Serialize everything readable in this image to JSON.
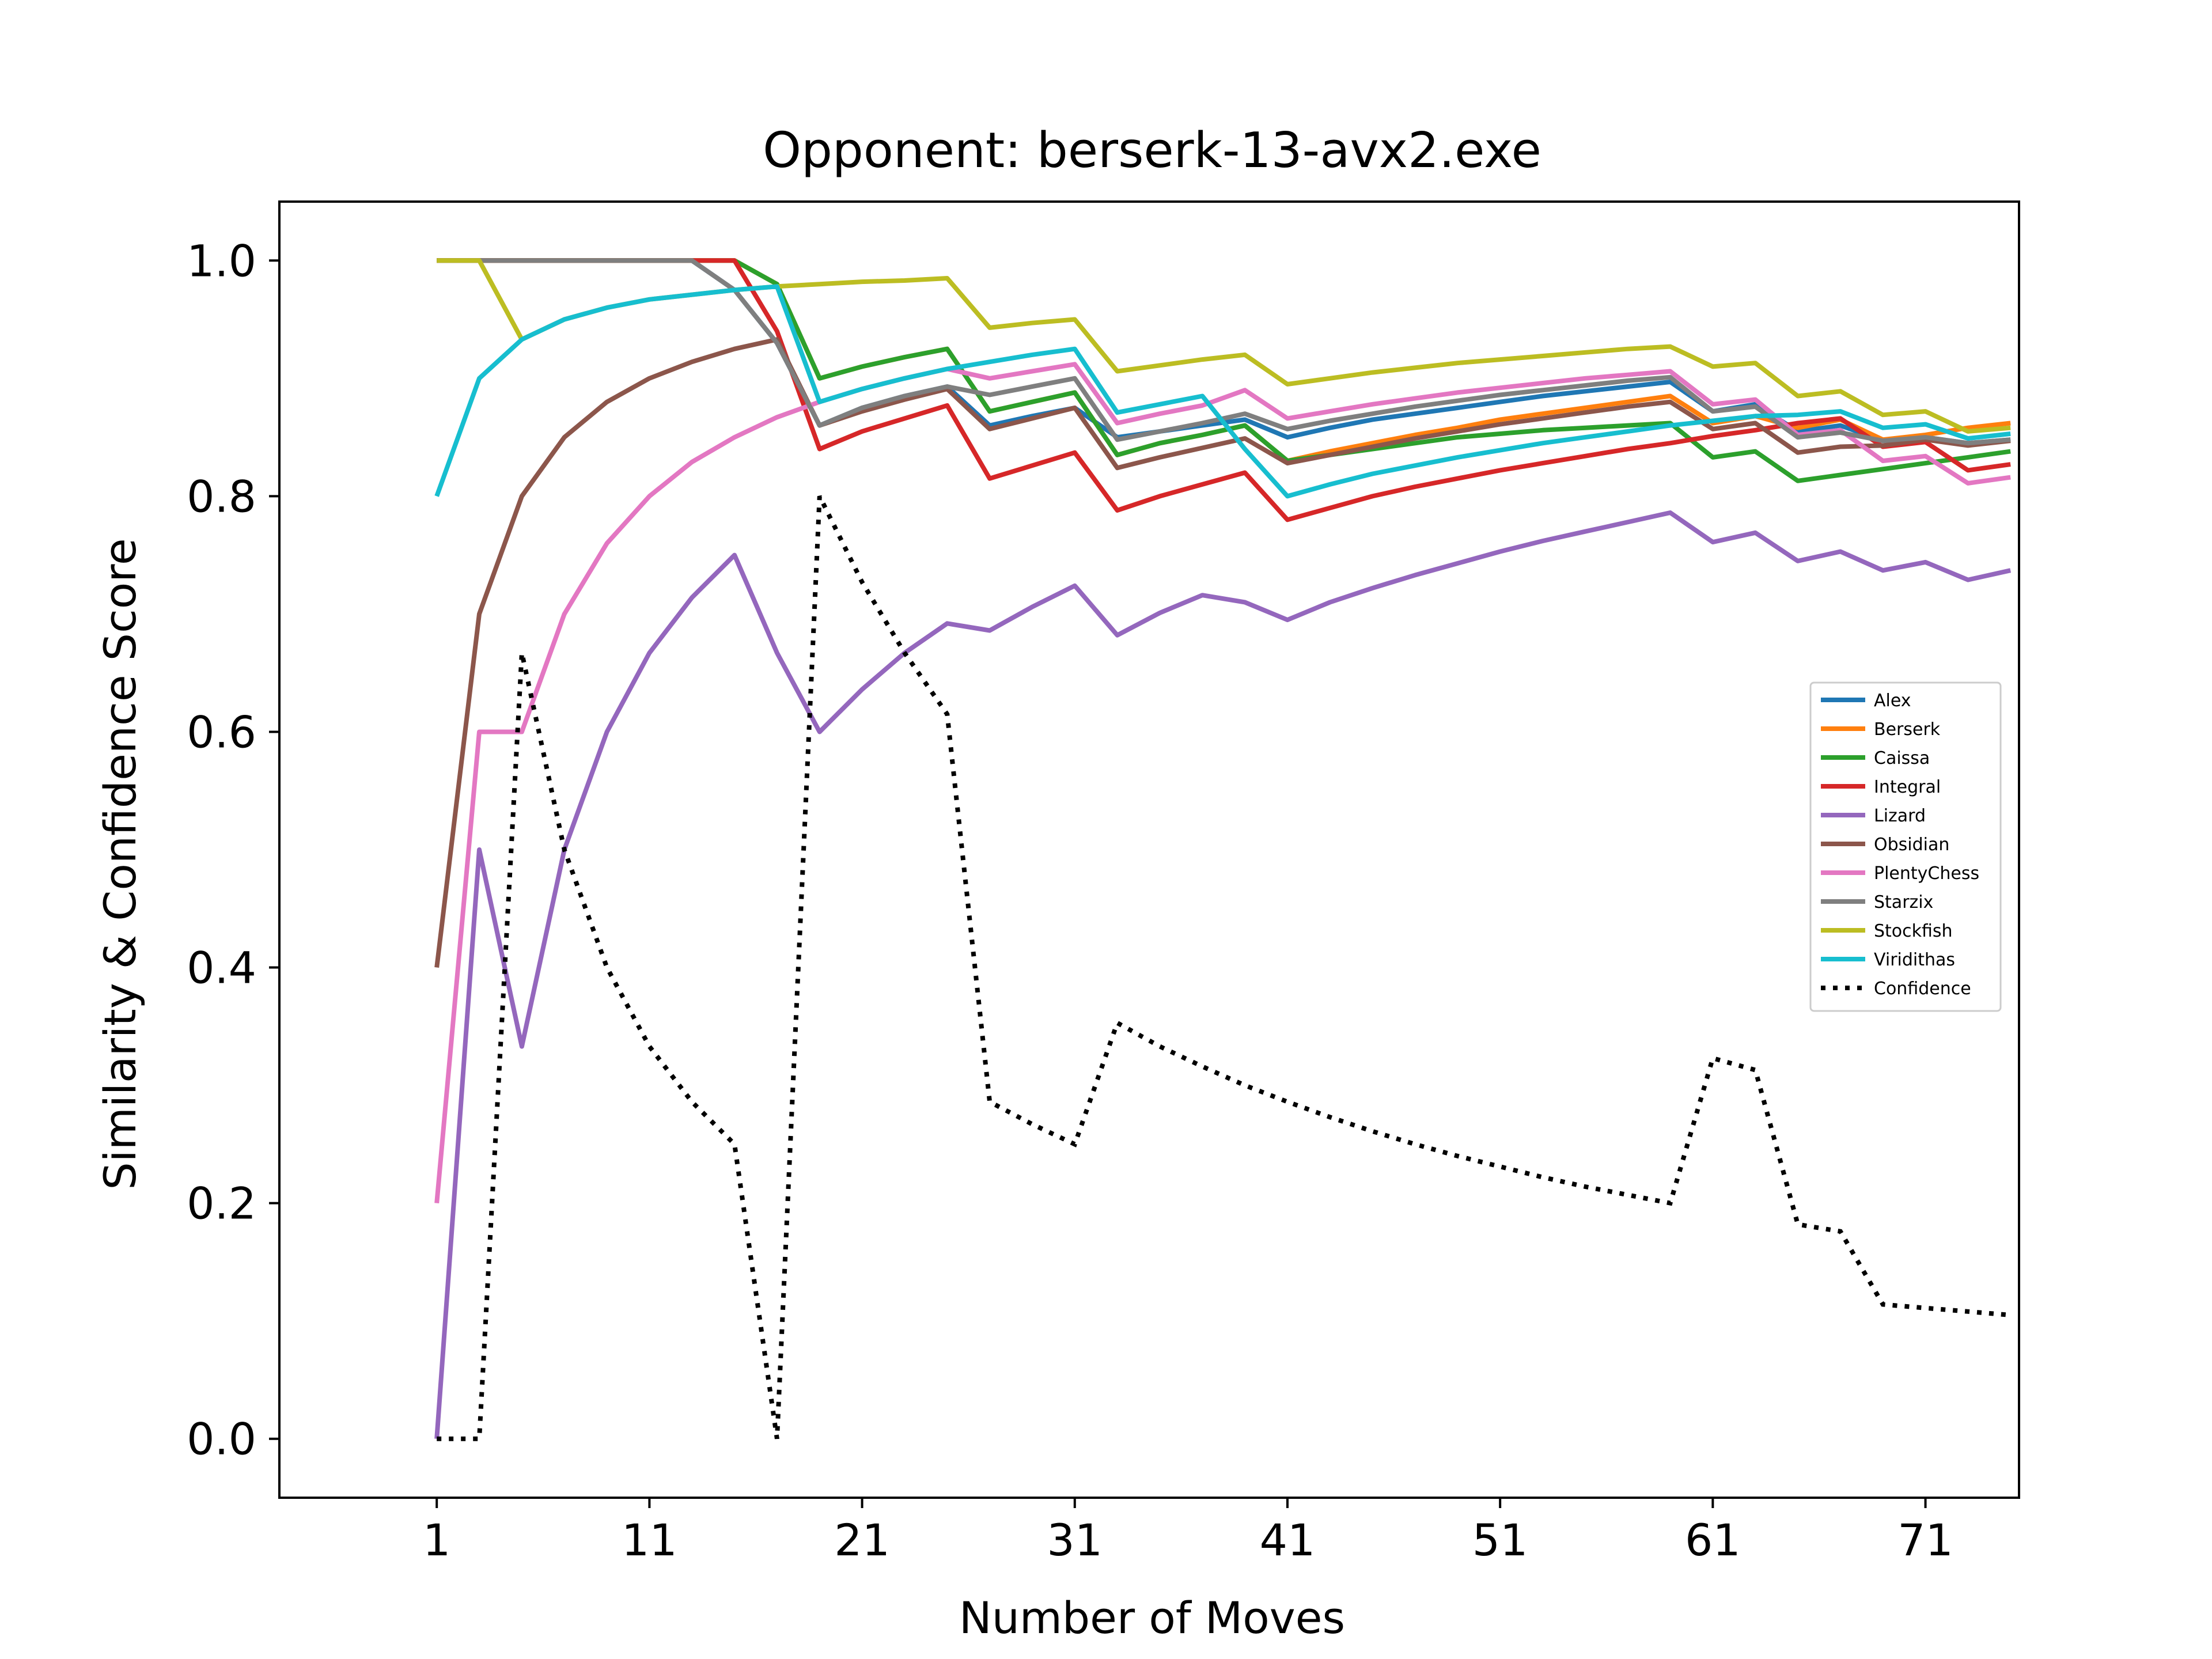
{
  "chart_data": {
    "type": "line",
    "title": "Opponent: berserk-13-avx2.exe",
    "xlabel": "Number of Moves",
    "ylabel": "Similarity & Confidence Score",
    "xlim": [
      -6.4,
      75.4
    ],
    "ylim": [
      -0.05,
      1.05
    ],
    "xticks": [
      1,
      11,
      21,
      31,
      41,
      51,
      61,
      71
    ],
    "yticks": [
      0.0,
      0.2,
      0.4,
      0.6,
      0.8,
      1.0
    ],
    "ytick_labels": [
      "0.0",
      "0.2",
      "0.4",
      "0.6",
      "0.8",
      "1.0"
    ],
    "grid": false,
    "legend_position": "center-right",
    "x": [
      1,
      3,
      5,
      7,
      9,
      11,
      13,
      15,
      17,
      19,
      21,
      23,
      25,
      27,
      29,
      31,
      33,
      35,
      37,
      39,
      41,
      43,
      45,
      47,
      49,
      51,
      53,
      55,
      57,
      59,
      61,
      63,
      65,
      67,
      69,
      71,
      73,
      75
    ],
    "series": [
      {
        "name": "Alex",
        "color": "#1f77b4",
        "dash": "solid",
        "values": [
          1.0,
          1.0,
          1.0,
          1.0,
          1.0,
          1.0,
          1.0,
          0.975,
          0.93,
          0.86,
          0.875,
          0.885,
          0.893,
          0.86,
          0.868,
          0.875,
          0.85,
          0.855,
          0.86,
          0.865,
          0.85,
          0.858,
          0.865,
          0.87,
          0.875,
          0.88,
          0.885,
          0.889,
          0.893,
          0.897,
          0.872,
          0.878,
          0.855,
          0.86,
          0.847,
          0.85,
          0.845,
          0.848
        ]
      },
      {
        "name": "Berserk",
        "color": "#ff7f0e",
        "dash": "solid",
        "values": [
          1.0,
          1.0,
          1.0,
          1.0,
          1.0,
          1.0,
          1.0,
          1.0,
          0.98,
          0.9,
          0.91,
          0.918,
          0.925,
          0.872,
          0.88,
          0.888,
          0.835,
          0.845,
          0.852,
          0.86,
          0.83,
          0.838,
          0.845,
          0.852,
          0.858,
          0.865,
          0.87,
          0.875,
          0.88,
          0.885,
          0.862,
          0.868,
          0.858,
          0.865,
          0.848,
          0.852,
          0.858,
          0.862
        ]
      },
      {
        "name": "Caissa",
        "color": "#2ca02c",
        "dash": "solid",
        "values": [
          1.0,
          1.0,
          1.0,
          1.0,
          1.0,
          1.0,
          1.0,
          1.0,
          0.98,
          0.9,
          0.91,
          0.918,
          0.925,
          0.872,
          0.88,
          0.888,
          0.835,
          0.845,
          0.852,
          0.86,
          0.83,
          0.835,
          0.84,
          0.845,
          0.85,
          0.853,
          0.856,
          0.858,
          0.86,
          0.862,
          0.833,
          0.838,
          0.813,
          0.818,
          0.823,
          0.828,
          0.833,
          0.838
        ]
      },
      {
        "name": "Integral",
        "color": "#d62728",
        "dash": "solid",
        "values": [
          1.0,
          1.0,
          1.0,
          1.0,
          1.0,
          1.0,
          1.0,
          1.0,
          0.94,
          0.84,
          0.855,
          0.866,
          0.877,
          0.815,
          0.826,
          0.837,
          0.788,
          0.8,
          0.81,
          0.82,
          0.78,
          0.79,
          0.8,
          0.808,
          0.815,
          0.822,
          0.828,
          0.834,
          0.84,
          0.845,
          0.851,
          0.856,
          0.862,
          0.866,
          0.842,
          0.846,
          0.822,
          0.827
        ]
      },
      {
        "name": "Lizard",
        "color": "#9467bd",
        "dash": "solid",
        "values": [
          0.0,
          0.5,
          0.333,
          0.5,
          0.6,
          0.667,
          0.714,
          0.75,
          0.667,
          0.6,
          0.636,
          0.667,
          0.692,
          0.686,
          0.706,
          0.724,
          0.682,
          0.701,
          0.716,
          0.71,
          0.695,
          0.71,
          0.722,
          0.733,
          0.743,
          0.753,
          0.762,
          0.77,
          0.778,
          0.786,
          0.761,
          0.769,
          0.745,
          0.753,
          0.737,
          0.744,
          0.729,
          0.737
        ]
      },
      {
        "name": "Obsidian",
        "color": "#8c564b",
        "dash": "solid",
        "values": [
          0.4,
          0.7,
          0.8,
          0.85,
          0.88,
          0.9,
          0.914,
          0.925,
          0.933,
          0.86,
          0.872,
          0.882,
          0.891,
          0.857,
          0.866,
          0.875,
          0.824,
          0.833,
          0.841,
          0.849,
          0.828,
          0.835,
          0.842,
          0.849,
          0.855,
          0.861,
          0.866,
          0.871,
          0.876,
          0.88,
          0.857,
          0.862,
          0.837,
          0.842,
          0.843,
          0.848,
          0.843,
          0.847
        ]
      },
      {
        "name": "PlentyChess",
        "color": "#e377c2",
        "dash": "solid",
        "values": [
          0.2,
          0.6,
          0.6,
          0.7,
          0.76,
          0.8,
          0.829,
          0.85,
          0.867,
          0.88,
          0.891,
          0.9,
          0.908,
          0.9,
          0.906,
          0.912,
          0.862,
          0.87,
          0.877,
          0.89,
          0.866,
          0.872,
          0.878,
          0.883,
          0.888,
          0.892,
          0.896,
          0.9,
          0.903,
          0.906,
          0.878,
          0.882,
          0.852,
          0.856,
          0.83,
          0.834,
          0.811,
          0.816
        ]
      },
      {
        "name": "Starzix",
        "color": "#7f7f7f",
        "dash": "solid",
        "values": [
          1.0,
          1.0,
          1.0,
          1.0,
          1.0,
          1.0,
          1.0,
          0.975,
          0.93,
          0.86,
          0.875,
          0.885,
          0.893,
          0.886,
          0.893,
          0.9,
          0.848,
          0.855,
          0.862,
          0.87,
          0.857,
          0.864,
          0.87,
          0.876,
          0.881,
          0.886,
          0.89,
          0.894,
          0.898,
          0.901,
          0.872,
          0.876,
          0.85,
          0.854,
          0.847,
          0.85,
          0.845,
          0.848
        ]
      },
      {
        "name": "Stockfish",
        "color": "#bcbd22",
        "dash": "solid",
        "values": [
          1.0,
          1.0,
          0.933,
          0.95,
          0.96,
          0.967,
          0.971,
          0.975,
          0.978,
          0.98,
          0.982,
          0.983,
          0.985,
          0.943,
          0.947,
          0.95,
          0.906,
          0.911,
          0.916,
          0.92,
          0.895,
          0.9,
          0.905,
          0.909,
          0.913,
          0.916,
          0.919,
          0.922,
          0.925,
          0.927,
          0.91,
          0.913,
          0.885,
          0.889,
          0.869,
          0.872,
          0.855,
          0.858
        ]
      },
      {
        "name": "Viridithas",
        "color": "#17becf",
        "dash": "solid",
        "values": [
          0.8,
          0.9,
          0.933,
          0.95,
          0.96,
          0.967,
          0.971,
          0.975,
          0.978,
          0.88,
          0.891,
          0.9,
          0.908,
          0.914,
          0.92,
          0.925,
          0.871,
          0.878,
          0.885,
          0.84,
          0.8,
          0.81,
          0.819,
          0.826,
          0.833,
          0.839,
          0.845,
          0.85,
          0.855,
          0.86,
          0.864,
          0.868,
          0.869,
          0.872,
          0.858,
          0.861,
          0.849,
          0.853
        ]
      },
      {
        "name": "Confidence",
        "color": "#000000",
        "dash": "dotted",
        "values": [
          0.0,
          0.0,
          0.667,
          0.5,
          0.4,
          0.333,
          0.286,
          0.25,
          0.0,
          0.8,
          0.727,
          0.667,
          0.615,
          0.286,
          0.267,
          0.25,
          0.353,
          0.333,
          0.316,
          0.3,
          0.286,
          0.273,
          0.261,
          0.25,
          0.24,
          0.231,
          0.222,
          0.214,
          0.207,
          0.2,
          0.323,
          0.313,
          0.182,
          0.176,
          0.114,
          0.111,
          0.108,
          0.105
        ]
      }
    ]
  }
}
